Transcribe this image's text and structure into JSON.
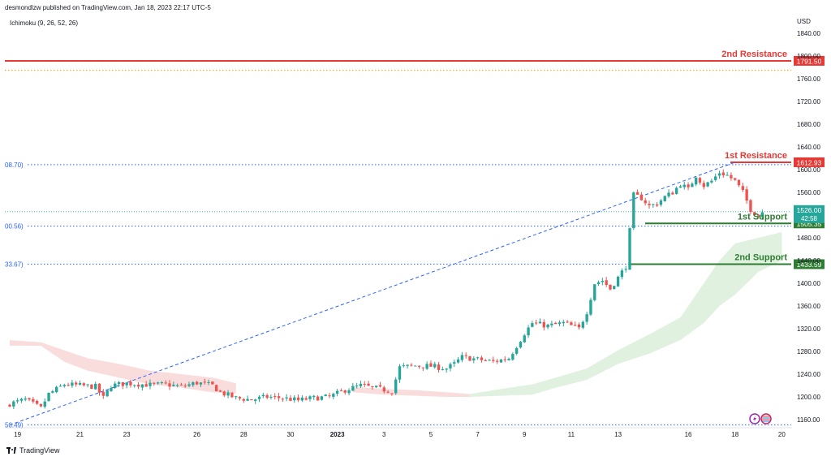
{
  "header": {
    "publisher_line": "desmondlzw published on TradingView.com, Jan 18, 2023 22:17 UTC-5",
    "indicator": "Ichimoku (9, 26, 52, 26)"
  },
  "footer": {
    "brand": "TradingView"
  },
  "colors": {
    "resistance": "#e53935",
    "support": "#2e7d32",
    "bull": "#26a69a",
    "bear": "#ef5350",
    "cloud_bull": "#a5d6a7",
    "cloud_bear": "#ef9a9a",
    "level_dotted": "#2962ff",
    "yellow_dotted": "#f9a825",
    "axis_text": "#131722",
    "price_label_bg": "#26a69a"
  },
  "chart_data": {
    "type": "candlestick",
    "symbol_currency": "USD",
    "ylim": [
      1150,
      1870
    ],
    "y_ticks": [
      1160,
      1200,
      1240,
      1280,
      1320,
      1360,
      1400,
      1440,
      1480,
      1520,
      1560,
      1600,
      1640,
      1680,
      1720,
      1760,
      1800,
      1840
    ],
    "x_ticks": [
      "19",
      "21",
      "23",
      "26",
      "28",
      "30",
      "2023",
      "3",
      "5",
      "7",
      "9",
      "11",
      "13",
      "16",
      "18",
      "20"
    ],
    "x_tick_bars": [
      2,
      18,
      30,
      48,
      60,
      72,
      84,
      96,
      108,
      120,
      132,
      144,
      156,
      174,
      186,
      198
    ],
    "bars_total": 200,
    "levels": [
      {
        "name": "2nd Resistance",
        "price": 1791.5,
        "price_text": "1791.50",
        "type": "resistance"
      },
      {
        "name": "1st Resistance",
        "price": 1612.93,
        "price_text": "1612.93",
        "type": "resistance"
      },
      {
        "name": "1st Support",
        "price": 1505.35,
        "price_text": "1505.35",
        "type": "support"
      },
      {
        "name": "2nd Support",
        "price": 1433.59,
        "price_text": "1433.59",
        "type": "support"
      }
    ],
    "fib_levels": [
      {
        "price": 1608.7,
        "label": "08.70)"
      },
      {
        "price": 1500.56,
        "label": "00.56)"
      },
      {
        "price": 1433.67,
        "label": "33.67)"
      },
      {
        "price": 1150.49,
        "label": "50.49)"
      }
    ],
    "yellow_level": 1775,
    "current_price": {
      "value": "1526.00",
      "countdown": "42:58",
      "price": 1526.0
    },
    "close_path": [
      [
        0,
        1188
      ],
      [
        4,
        1195
      ],
      [
        8,
        1180
      ],
      [
        10,
        1205
      ],
      [
        14,
        1222
      ],
      [
        18,
        1220
      ],
      [
        22,
        1218
      ],
      [
        24,
        1198
      ],
      [
        26,
        1220
      ],
      [
        30,
        1224
      ],
      [
        36,
        1221
      ],
      [
        40,
        1222
      ],
      [
        44,
        1218
      ],
      [
        48,
        1225
      ],
      [
        52,
        1220
      ],
      [
        54,
        1208
      ],
      [
        58,
        1198
      ],
      [
        62,
        1195
      ],
      [
        66,
        1200
      ],
      [
        70,
        1198
      ],
      [
        74,
        1194
      ],
      [
        78,
        1198
      ],
      [
        82,
        1200
      ],
      [
        86,
        1212
      ],
      [
        90,
        1220
      ],
      [
        94,
        1215
      ],
      [
        98,
        1210
      ],
      [
        100,
        1252
      ],
      [
        104,
        1255
      ],
      [
        108,
        1254
      ],
      [
        112,
        1250
      ],
      [
        114,
        1258
      ],
      [
        116,
        1270
      ],
      [
        120,
        1266
      ],
      [
        124,
        1262
      ],
      [
        128,
        1268
      ],
      [
        130,
        1290
      ],
      [
        132,
        1312
      ],
      [
        134,
        1330
      ],
      [
        138,
        1325
      ],
      [
        142,
        1330
      ],
      [
        146,
        1320
      ],
      [
        148,
        1350
      ],
      [
        150,
        1400
      ],
      [
        152,
        1405
      ],
      [
        154,
        1390
      ],
      [
        156,
        1410
      ],
      [
        158,
        1430
      ],
      [
        160,
        1555
      ],
      [
        162,
        1550
      ],
      [
        164,
        1536
      ],
      [
        166,
        1540
      ],
      [
        168,
        1552
      ],
      [
        170,
        1560
      ],
      [
        172,
        1575
      ],
      [
        174,
        1565
      ],
      [
        176,
        1590
      ],
      [
        178,
        1572
      ],
      [
        180,
        1580
      ],
      [
        182,
        1595
      ],
      [
        184,
        1590
      ],
      [
        186,
        1580
      ],
      [
        188,
        1560
      ],
      [
        190,
        1530
      ],
      [
        192,
        1518
      ],
      [
        193,
        1526
      ]
    ],
    "ichimoku_cloud": {
      "bear_segments": [
        [
          [
            0,
            1300,
            1290
          ],
          [
            8,
            1296,
            1290
          ],
          [
            14,
            1282,
            1262
          ],
          [
            20,
            1268,
            1246
          ],
          [
            28,
            1258,
            1234
          ],
          [
            36,
            1246,
            1222
          ],
          [
            44,
            1240,
            1216
          ],
          [
            52,
            1234,
            1208
          ],
          [
            58,
            1224,
            1206
          ]
        ],
        [
          [
            88,
            1218,
            1208
          ],
          [
            96,
            1214,
            1204
          ],
          [
            104,
            1212,
            1202
          ],
          [
            112,
            1208,
            1200
          ],
          [
            118,
            1205,
            1200
          ]
        ]
      ],
      "bull_segments": [
        [
          [
            118,
            1205,
            1200
          ],
          [
            126,
            1214,
            1202
          ],
          [
            134,
            1222,
            1204
          ],
          [
            140,
            1234,
            1216
          ],
          [
            148,
            1250,
            1230
          ],
          [
            156,
            1282,
            1258
          ],
          [
            164,
            1310,
            1276
          ],
          [
            172,
            1340,
            1300
          ],
          [
            178,
            1400,
            1330
          ],
          [
            182,
            1440,
            1360
          ],
          [
            186,
            1470,
            1380
          ],
          [
            192,
            1480,
            1420
          ],
          [
            198,
            1490,
            1440
          ]
        ]
      ]
    },
    "trendline": {
      "from": [
        0,
        1150.49
      ],
      "to": [
        186,
        1612.93
      ]
    }
  }
}
